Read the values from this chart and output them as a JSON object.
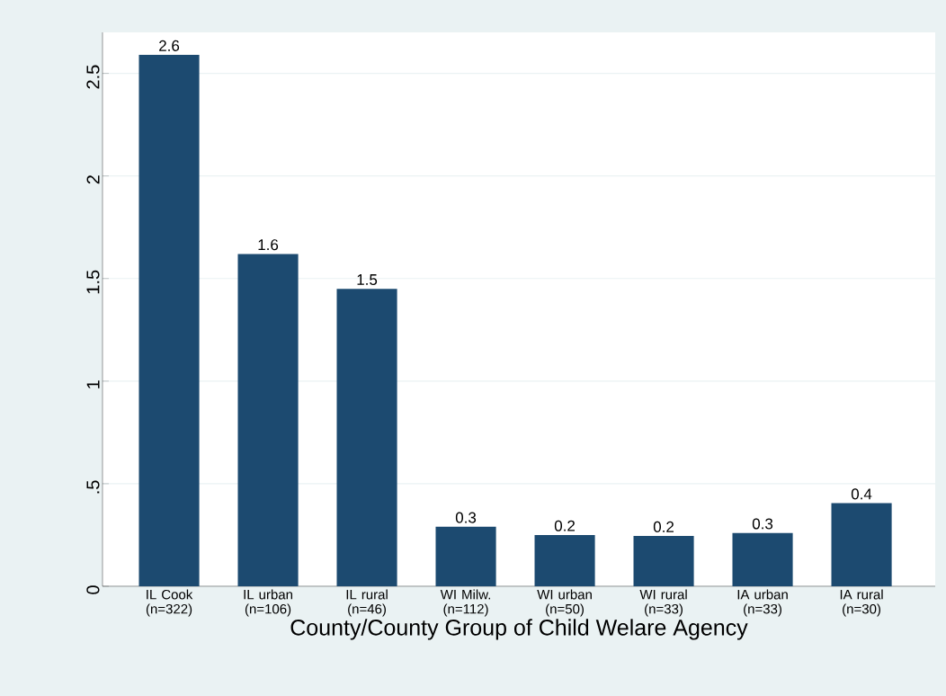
{
  "chart_data": {
    "type": "bar",
    "xlabel": "County/County Group of Child Welare Agency",
    "categories": [
      "IL Cook (n=322)",
      "IL urban (n=106)",
      "IL rural (n=46)",
      "WI Milw. (n=112)",
      "WI urban (n=50)",
      "WI rural (n=33)",
      "IA urban (n=33)",
      "IA rural (n=30)"
    ],
    "values": [
      2.59,
      1.62,
      1.45,
      0.29,
      0.25,
      0.245,
      0.26,
      0.405
    ],
    "value_labels": [
      "2.6",
      "1.6",
      "1.5",
      "0.3",
      "0.2",
      "0.2",
      "0.3",
      "0.4"
    ],
    "color": "#1c4a70",
    "ylim": [
      0,
      2.7
    ],
    "yticks": [
      0,
      {
        "value": 0.5,
        "label": ".5"
      },
      1,
      1.5,
      2,
      2.5
    ],
    "grid": "y"
  }
}
